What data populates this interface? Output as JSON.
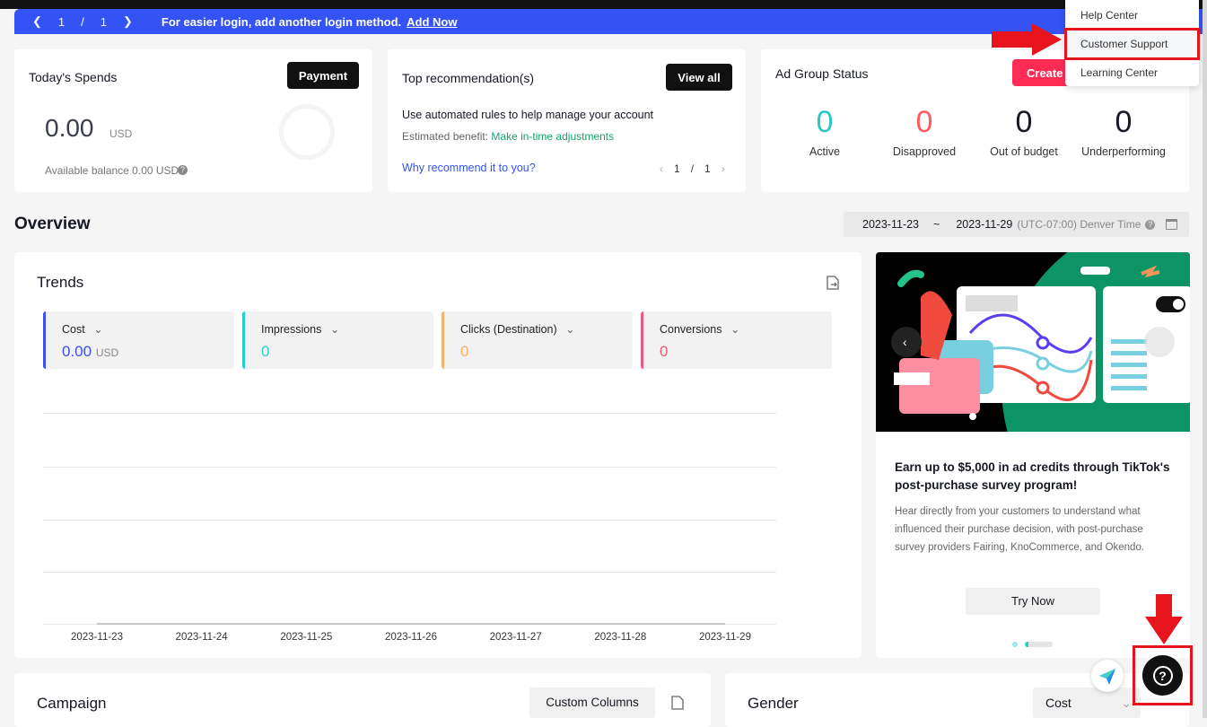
{
  "banner": {
    "page": "1",
    "sep": "/",
    "total": "1",
    "message": "For easier login, add another login method.",
    "link": "Add Now"
  },
  "spends": {
    "title": "Today's Spends",
    "button": "Payment",
    "amount": "0.00",
    "currency": "USD",
    "balance": "Available balance 0.00 USD"
  },
  "recommend": {
    "title": "Top recommendation(s)",
    "button": "View all",
    "headline": "Use automated rules to help manage your account",
    "benefit_label": "Estimated benefit:",
    "benefit_value": "Make in-time adjustments",
    "why": "Why recommend it to you?",
    "page": "1",
    "sep": "/",
    "total": "1"
  },
  "adgroup": {
    "title": "Ad Group Status",
    "create": "Create a",
    "stats": [
      {
        "value": "0",
        "label": "Active",
        "color": "#2ac6c8"
      },
      {
        "value": "0",
        "label": "Disapproved",
        "color": "#fe5a5f"
      },
      {
        "value": "0",
        "label": "Out of budget",
        "color": "#161823"
      },
      {
        "value": "0",
        "label": "Underperforming",
        "color": "#161823"
      }
    ]
  },
  "help_menu": {
    "items": [
      "Help Center",
      "Customer Support",
      "Learning Center"
    ],
    "highlighted": "Customer Support"
  },
  "overview": {
    "title": "Overview",
    "start": "2023-11-23",
    "tilde": "~",
    "end": "2023-11-29",
    "tz": "(UTC-07:00) Denver Time"
  },
  "trends": {
    "title": "Trends",
    "metrics": [
      {
        "label": "Cost",
        "value": "0.00",
        "unit": "USD",
        "color": "#3b4ef5"
      },
      {
        "label": "Impressions",
        "value": "0",
        "unit": "",
        "color": "#25cdd6"
      },
      {
        "label": "Clicks (Destination)",
        "value": "0",
        "unit": "",
        "color": "#f5b26b"
      },
      {
        "label": "Conversions",
        "value": "0",
        "unit": "",
        "color": "#f0587a"
      }
    ],
    "chart_data": {
      "type": "line",
      "categories": [
        "2023-11-23",
        "2023-11-24",
        "2023-11-25",
        "2023-11-26",
        "2023-11-27",
        "2023-11-28",
        "2023-11-29"
      ],
      "values": [
        0,
        0,
        0,
        0,
        0,
        0,
        0
      ],
      "grid": true
    }
  },
  "promo": {
    "title": "Earn up to $5,000 in ad credits through TikTok's post-purchase survey program!",
    "body": "Hear directly from your customers to understand what influenced their purchase decision, with post-purchase survey providers Fairing, KnoCommerce, and Okendo.",
    "button": "Try Now"
  },
  "campaign": {
    "title": "Campaign",
    "button": "Custom Columns"
  },
  "gender": {
    "title": "Gender",
    "select": "Cost"
  }
}
